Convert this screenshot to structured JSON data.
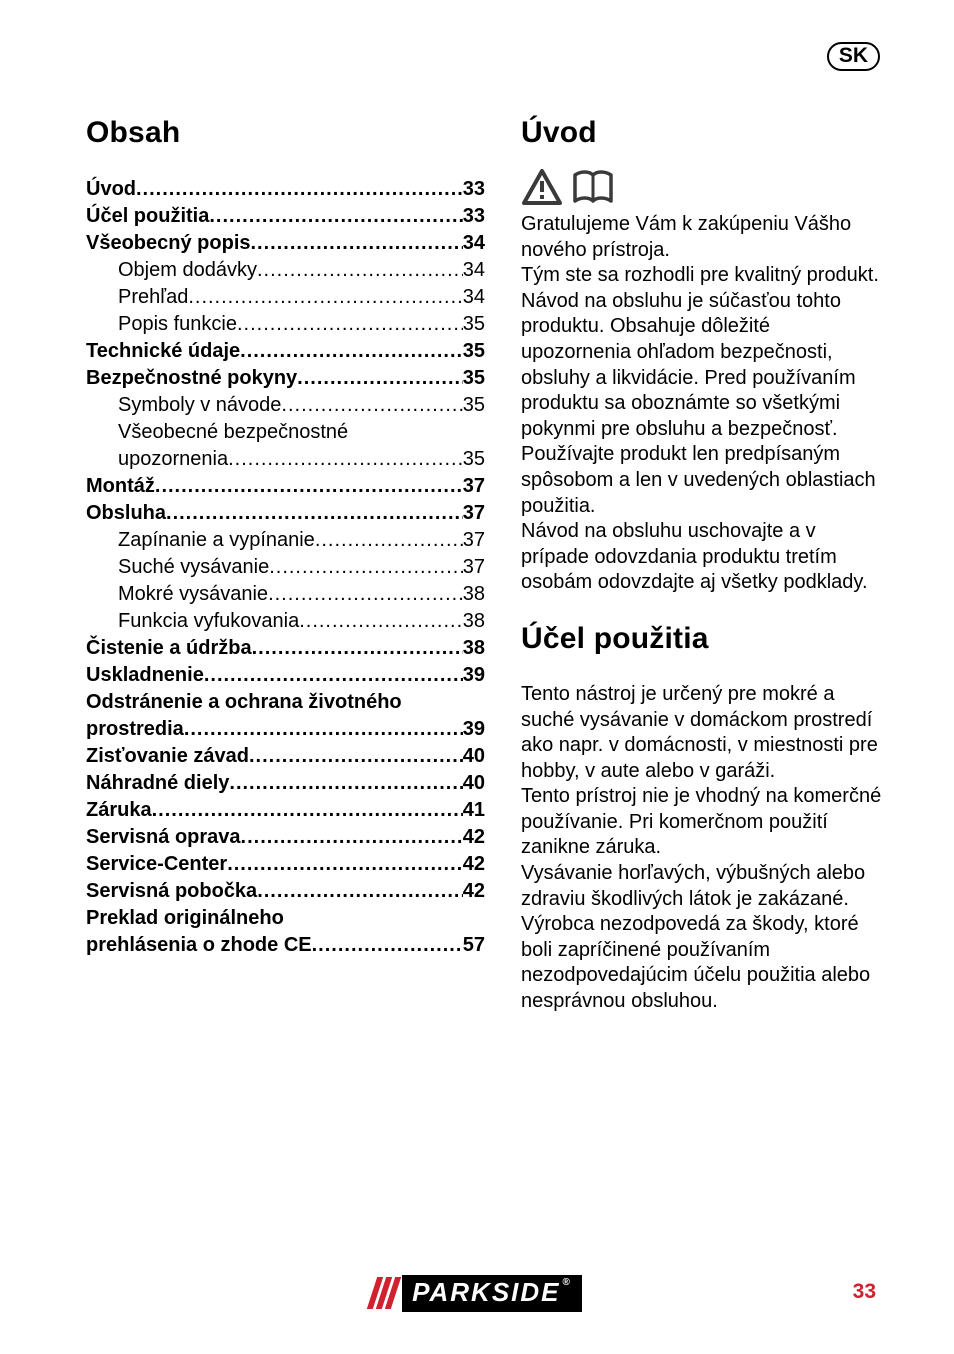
{
  "locale_badge": "SK",
  "left": {
    "heading": "Obsah",
    "toc": [
      {
        "t": "main",
        "label": "Úvod",
        "page": "33"
      },
      {
        "t": "main",
        "label": "Účel použitia",
        "page": "33"
      },
      {
        "t": "main",
        "label": "Všeobecný popis",
        "page": "34"
      },
      {
        "t": "sub",
        "label": "Objem dodávky",
        "page": "34"
      },
      {
        "t": "sub",
        "label": "Prehľad",
        "page": "34"
      },
      {
        "t": "sub",
        "label": "Popis funkcie",
        "page": "35"
      },
      {
        "t": "main",
        "label": "Technické údaje",
        "page": "35"
      },
      {
        "t": "main",
        "label": "Bezpečnostné pokyny",
        "page": "35"
      },
      {
        "t": "sub",
        "label": "Symboly v návode",
        "page": "35"
      },
      {
        "t": "sub-nop",
        "label": "Všeobecné bezpečnostné"
      },
      {
        "t": "sub",
        "label": "upozornenia",
        "page": "35"
      },
      {
        "t": "main",
        "label": "Montáž",
        "page": "37"
      },
      {
        "t": "main",
        "label": "Obsluha",
        "page": "37"
      },
      {
        "t": "sub",
        "label": "Zapínanie a vypínanie",
        "page": "37"
      },
      {
        "t": "sub",
        "label": "Suché vysávanie",
        "page": "37"
      },
      {
        "t": "sub",
        "label": "Mokré vysávanie",
        "page": "38"
      },
      {
        "t": "sub",
        "label": "Funkcia vyfukovania",
        "page": "38"
      },
      {
        "t": "main",
        "label": "Čistenie a údržba",
        "page": "38"
      },
      {
        "t": "main",
        "label": "Uskladnenie",
        "page": "39"
      },
      {
        "t": "main-nop",
        "label": "Odstránenie a ochrana životného"
      },
      {
        "t": "main",
        "label": "prostredia",
        "page": "39"
      },
      {
        "t": "main",
        "label": "Zisťovanie závad",
        "page": "40"
      },
      {
        "t": "main",
        "label": "Náhradné diely",
        "page": "40"
      },
      {
        "t": "main",
        "label": "Záruka",
        "page": "41"
      },
      {
        "t": "main",
        "label": "Servisná oprava",
        "page": "42"
      },
      {
        "t": "main",
        "label": "Service-Center",
        "page": "42"
      },
      {
        "t": "main",
        "label": "Servisná pobočka",
        "page": "42"
      },
      {
        "t": "main-nop",
        "label": "Preklad originálneho"
      },
      {
        "t": "main",
        "label": "prehlásenia o zhode CE",
        "page": "57"
      }
    ]
  },
  "right": {
    "heading1": "Úvod",
    "para1": "Gratulujeme Vám k zakúpeniu Vášho nového prístroja.\nTým ste sa rozhodli pre kvalitný produkt. Návod na obsluhu je súčasťou tohto produktu. Obsahuje dôležité upozornenia ohľadom  bezpečnosti, obsluhy a likvidácie. Pred používaním produktu sa oboznámte so všetkými pokynmi pre obsluhu a bezpečnosť. Používajte produkt len predpísaným spôsobom a len v uvedených oblastiach použitia.\nNávod na obsluhu uschovajte a v prípade odovzdania produktu tretím osobám odovzdajte aj všetky podklady.",
    "heading2": "Účel použitia",
    "para2": "Tento nástroj je určený pre mokré a suché vysávanie v domáckom prostredí ako napr. v domácnosti, v miestnosti pre hobby, v aute alebo v garáži.\nTento prístroj nie je vhodný na komerčné používanie. Pri komerčnom použití zanikne záruka.\nVysávanie horľavých, výbušných alebo zdraviu škodlivých látok je zakázané.\nVýrobca nezodpovedá za škody, ktoré boli zapríčinené používaním nezodpovedajúcim účelu použitia alebo nesprávnou obsluhou."
  },
  "footer": {
    "brand": "PARKSIDE",
    "page_number": "33",
    "accent_color": "#d1202f"
  }
}
